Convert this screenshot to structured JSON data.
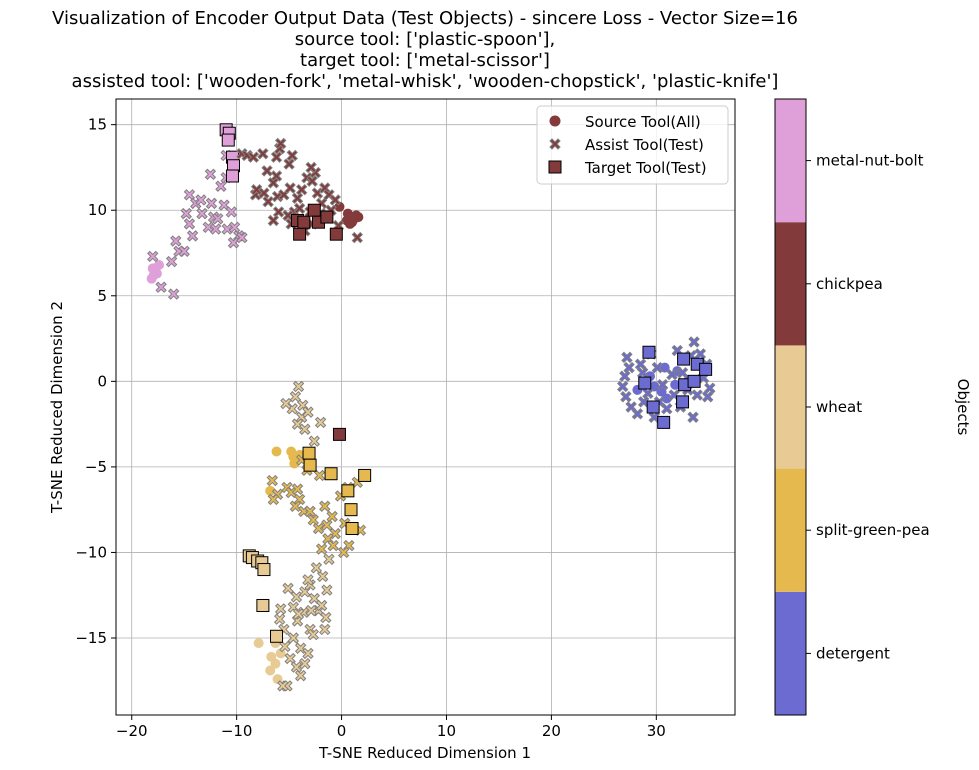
{
  "chart_data": {
    "type": "scatter",
    "title_lines": [
      "Visualization of Encoder Output Data (Test Objects) - sincere Loss - Vector Size=16",
      "source tool: ['plastic-spoon'],",
      "target tool: ['metal-scissor']",
      "assisted tool: ['wooden-fork', 'metal-whisk', 'wooden-chopstick', 'plastic-knife']"
    ],
    "xlabel": "T-SNE Reduced Dimension 1",
    "ylabel": "T-SNE Reduced Dimension 2",
    "xlim": [
      -21.5,
      37.5
    ],
    "ylim": [
      -19.5,
      16.5
    ],
    "xticks": [
      -20,
      -10,
      0,
      10,
      20,
      30
    ],
    "yticks": [
      -15,
      -10,
      -5,
      0,
      5,
      10,
      15
    ],
    "grid": true,
    "legend_position": "top-right",
    "legend": [
      {
        "label": "Source Tool(All)",
        "marker": "circle"
      },
      {
        "label": "Assist Tool(Test)",
        "marker": "x"
      },
      {
        "label": "Target Tool(Test)",
        "marker": "square"
      }
    ],
    "colorbar": {
      "label": "Objects",
      "categories": [
        "detergent",
        "split-green-pea",
        "wheat",
        "chickpea",
        "metal-nut-bolt"
      ],
      "colors": [
        "#6b6bd1",
        "#e6b94e",
        "#e8cb94",
        "#833a3a",
        "#dfa0d9"
      ]
    },
    "clusters": [
      {
        "object": "metal-nut-bolt",
        "source": [
          [
            -18,
            6.6
          ],
          [
            -17.6,
            6.3
          ],
          [
            -18.1,
            6
          ],
          [
            -17.4,
            6.8
          ],
          [
            -17.8,
            6.5
          ],
          [
            -17.9,
            6.2
          ]
        ],
        "assist": [
          [
            -18,
            7.3
          ],
          [
            -17.2,
            5.5
          ],
          [
            -16,
            5.1
          ],
          [
            -15.5,
            7.6
          ],
          [
            -16.2,
            7
          ],
          [
            -15,
            7.6
          ],
          [
            -15.8,
            8.2
          ],
          [
            -14.5,
            9.2
          ],
          [
            -14.8,
            9.8
          ],
          [
            -14.5,
            10.9
          ],
          [
            -13.9,
            10.4
          ],
          [
            -13.4,
            10.6
          ],
          [
            -14.2,
            8.5
          ],
          [
            -12.5,
            12.1
          ],
          [
            -12.2,
            9.6
          ],
          [
            -12.7,
            9
          ],
          [
            -13.3,
            9.8
          ],
          [
            -12,
            8.9
          ],
          [
            -11.5,
            11.4
          ],
          [
            -11,
            11.9
          ],
          [
            -11.2,
            10.3
          ],
          [
            -10.5,
            9.9
          ],
          [
            -10.9,
            8.9
          ],
          [
            -10.2,
            9
          ],
          [
            -9.8,
            8.5
          ],
          [
            -10.3,
            8.1
          ],
          [
            -9.5,
            8.4
          ],
          [
            -11.8,
            9.5
          ],
          [
            -12.4,
            10.4
          ],
          [
            -11,
            13.2
          ]
        ],
        "target": [
          [
            -11,
            14.7
          ],
          [
            -10.7,
            14.5
          ],
          [
            -10.8,
            14.1
          ],
          [
            -10.4,
            13.1
          ],
          [
            -10.3,
            12.6
          ],
          [
            -10.4,
            12
          ]
        ]
      },
      {
        "object": "chickpea",
        "source": [
          [
            0.8,
            9.2
          ],
          [
            1.2,
            9.5
          ],
          [
            1.6,
            9.6
          ],
          [
            1,
            9.3
          ],
          [
            0.5,
            9.4
          ],
          [
            1.4,
            9.7
          ],
          [
            -0.2,
            10.2
          ],
          [
            0.6,
            9.8
          ]
        ],
        "assist": [
          [
            -9.5,
            13.3
          ],
          [
            -9,
            13.2
          ],
          [
            -8.4,
            13.1
          ],
          [
            -7.5,
            13.3
          ],
          [
            -6.2,
            13.1
          ],
          [
            -5.9,
            13.6
          ],
          [
            -4.7,
            13.2
          ],
          [
            -5,
            12.7
          ],
          [
            -6.2,
            12
          ],
          [
            -7.1,
            12.3
          ],
          [
            -6.5,
            11.6
          ],
          [
            -7.4,
            11
          ],
          [
            -8.2,
            10.9
          ],
          [
            -8.1,
            11.2
          ],
          [
            -7,
            10.5
          ],
          [
            -6.1,
            10.8
          ],
          [
            -5.5,
            10.9
          ],
          [
            -4.9,
            11.3
          ],
          [
            -4.2,
            10.7
          ],
          [
            -3.8,
            11.2
          ],
          [
            -4.5,
            9.9
          ],
          [
            -3.3,
            11.9
          ],
          [
            -2.8,
            11.7
          ],
          [
            -2.5,
            12.2
          ],
          [
            -2.3,
            11
          ],
          [
            -1.6,
            11.3
          ],
          [
            -1.2,
            10.9
          ],
          [
            -0.6,
            10.6
          ],
          [
            -1,
            10
          ],
          [
            -2,
            9.8
          ],
          [
            -3,
            9.9
          ],
          [
            -4,
            10.1
          ],
          [
            -5.1,
            9.7
          ],
          [
            -6,
            9.9
          ],
          [
            -6.5,
            9.4
          ],
          [
            -4.8,
            9.2
          ],
          [
            1.5,
            8.4
          ],
          [
            -0.3,
            9.1
          ],
          [
            -3.5,
            8.8
          ],
          [
            -2.8,
            9.2
          ],
          [
            -1.9,
            10.4
          ],
          [
            -5.8,
            13.9
          ],
          [
            -2.9,
            12.5
          ]
        ],
        "target": [
          [
            -4.2,
            9.4
          ],
          [
            -4,
            8.6
          ],
          [
            -3.6,
            9.3
          ],
          [
            -2.6,
            10
          ],
          [
            -2.2,
            9.3
          ],
          [
            -1.4,
            9.6
          ],
          [
            -0.5,
            8.6
          ],
          [
            -0.2,
            -3.1
          ]
        ]
      },
      {
        "object": "detergent",
        "source": [
          [
            28.2,
            -0.5
          ],
          [
            29,
            -0.1
          ],
          [
            29.8,
            -0.3
          ],
          [
            30.8,
            0.8
          ],
          [
            32,
            0.6
          ],
          [
            30.5,
            -0.6
          ],
          [
            31,
            -1
          ],
          [
            33,
            0
          ],
          [
            29.4,
            0.3
          ],
          [
            31.8,
            -0.2
          ]
        ],
        "assist": [
          [
            27.2,
            1.4
          ],
          [
            27.4,
            0.8
          ],
          [
            27,
            0.3
          ],
          [
            26.8,
            -0.3
          ],
          [
            27.1,
            -0.9
          ],
          [
            27.6,
            -1.5
          ],
          [
            28.2,
            -1.9
          ],
          [
            28.5,
            1
          ],
          [
            28.7,
            0.5
          ],
          [
            29.2,
            -0.7
          ],
          [
            29.5,
            1.6
          ],
          [
            30.1,
            0.8
          ],
          [
            30.6,
            -0.2
          ],
          [
            30.3,
            -1.2
          ],
          [
            31,
            -1.6
          ],
          [
            31.5,
            0.4
          ],
          [
            32,
            1.8
          ],
          [
            32.5,
            0.5
          ],
          [
            33,
            -0.5
          ],
          [
            33.3,
            1.5
          ],
          [
            33.6,
            2.3
          ],
          [
            33.9,
            -0.8
          ],
          [
            34.2,
            1.6
          ],
          [
            34.5,
            0.2
          ],
          [
            34.8,
            1
          ],
          [
            35.1,
            -0.4
          ],
          [
            34.9,
            -0.9
          ],
          [
            32.3,
            -1.5
          ],
          [
            33.5,
            -2.1
          ],
          [
            29.8,
            -2.1
          ],
          [
            31.7,
            -0.8
          ],
          [
            28.8,
            -1.2
          ]
        ],
        "target": [
          [
            29.3,
            1.7
          ],
          [
            28.9,
            -0.1
          ],
          [
            29.7,
            -1.5
          ],
          [
            30.7,
            -2.4
          ],
          [
            32.6,
            1.3
          ],
          [
            33.9,
            1
          ],
          [
            32.7,
            -0.2
          ],
          [
            33.6,
            0
          ],
          [
            34.7,
            0.7
          ],
          [
            32.5,
            -1.2
          ]
        ]
      },
      {
        "object": "split-green-pea",
        "source": [
          [
            -6.2,
            -4.1
          ],
          [
            -4.6,
            -4.4
          ],
          [
            -4.3,
            -4.6
          ],
          [
            -4.5,
            -4.8
          ],
          [
            -4,
            -4.3
          ],
          [
            -4.8,
            -4.1
          ],
          [
            -4.2,
            -4.4
          ],
          [
            -6.8,
            -6.4
          ]
        ],
        "assist": [
          [
            -6.6,
            -5.8
          ],
          [
            -6.1,
            -6.6
          ],
          [
            -6.5,
            -6.9
          ],
          [
            -5.2,
            -6.2
          ],
          [
            -4.8,
            -6.5
          ],
          [
            -4.2,
            -6.3
          ],
          [
            -4,
            -6.9
          ],
          [
            -4.4,
            -7.3
          ],
          [
            -3.6,
            -7.6
          ],
          [
            -3,
            -7.6
          ],
          [
            -2.7,
            -8.1
          ],
          [
            -2.2,
            -8.6
          ],
          [
            -1.4,
            -8.4
          ],
          [
            -0.9,
            -7.9
          ],
          [
            -0.6,
            -8.9
          ],
          [
            -1.3,
            -9.2
          ],
          [
            -0.8,
            -9.6
          ],
          [
            0.3,
            -8.3
          ],
          [
            0.7,
            -9.6
          ],
          [
            1.8,
            -8.7
          ],
          [
            -0.1,
            -6.7
          ],
          [
            0.6,
            -6.2
          ],
          [
            1.5,
            -5.9
          ],
          [
            -1.6,
            -7.3
          ],
          [
            -2.1,
            -5.5
          ],
          [
            -3.3,
            -5.2
          ],
          [
            -3.8,
            -4.6
          ],
          [
            -1.9,
            -9.8
          ],
          [
            0.2,
            -10
          ]
        ],
        "target": [
          [
            -3.1,
            -4.2
          ],
          [
            -3,
            -4.9
          ],
          [
            -1,
            -5.4
          ],
          [
            0.6,
            -6.4
          ],
          [
            0.9,
            -7.5
          ],
          [
            1,
            -8.6
          ],
          [
            2.2,
            -5.5
          ]
        ]
      },
      {
        "object": "wheat",
        "source": [
          [
            -7.9,
            -15.3
          ],
          [
            -6.7,
            -16.1
          ],
          [
            -6.3,
            -16.5
          ],
          [
            -6.8,
            -16.9
          ],
          [
            -6.1,
            -17.4
          ],
          [
            -5.8,
            -15.9
          ],
          [
            -6.3,
            -15.3
          ]
        ],
        "assist": [
          [
            -4.1,
            -0.3
          ],
          [
            -4.4,
            -0.9
          ],
          [
            -3.7,
            -1.4
          ],
          [
            -4.7,
            -1.6
          ],
          [
            -3.8,
            -2.1
          ],
          [
            -4.2,
            -2.5
          ],
          [
            -3.5,
            -2.8
          ],
          [
            -5.3,
            -1.3
          ],
          [
            -3.2,
            -1.8
          ],
          [
            -2,
            -2.4
          ],
          [
            -2.6,
            -3.5
          ],
          [
            -4.6,
            -13.2
          ],
          [
            -4.3,
            -12.6
          ],
          [
            -3.5,
            -12.3
          ],
          [
            -3,
            -11.9
          ],
          [
            -2.6,
            -12.7
          ],
          [
            -2.2,
            -13.4
          ],
          [
            -1.9,
            -13.1
          ],
          [
            -1.4,
            -12.2
          ],
          [
            -3.6,
            -13.5
          ],
          [
            -4.2,
            -14
          ],
          [
            -5.5,
            -14.5
          ],
          [
            -5.9,
            -13.9
          ],
          [
            -6.1,
            -14.9
          ],
          [
            -5.4,
            -15.5
          ],
          [
            -4.9,
            -16.2
          ],
          [
            -4.3,
            -16.7
          ],
          [
            -3.9,
            -17.2
          ],
          [
            -3.5,
            -16.5
          ],
          [
            -3,
            -14.5
          ],
          [
            -2.7,
            -14.8
          ],
          [
            -1.6,
            -14.5
          ],
          [
            -1.5,
            -13.8
          ],
          [
            -5.2,
            -17.8
          ],
          [
            -5.6,
            -17.8
          ],
          [
            -4.6,
            -15
          ],
          [
            -3.9,
            -15.6
          ],
          [
            -3.2,
            -15.9
          ],
          [
            -2.9,
            -13.4
          ],
          [
            -1.8,
            -11.4
          ],
          [
            -3.2,
            -11.6
          ],
          [
            -5.8,
            -13.3
          ],
          [
            -4.1,
            -13.6
          ],
          [
            -5.1,
            -12.1
          ],
          [
            -2.4,
            -10.9
          ],
          [
            -1.2,
            -10.4
          ]
        ],
        "target": [
          [
            -8.8,
            -10.2
          ],
          [
            -8.5,
            -10.3
          ],
          [
            -8,
            -10.5
          ],
          [
            -7.6,
            -10.6
          ],
          [
            -7.4,
            -11
          ],
          [
            -7.5,
            -13.1
          ],
          [
            -6.2,
            -14.9
          ]
        ]
      }
    ]
  }
}
